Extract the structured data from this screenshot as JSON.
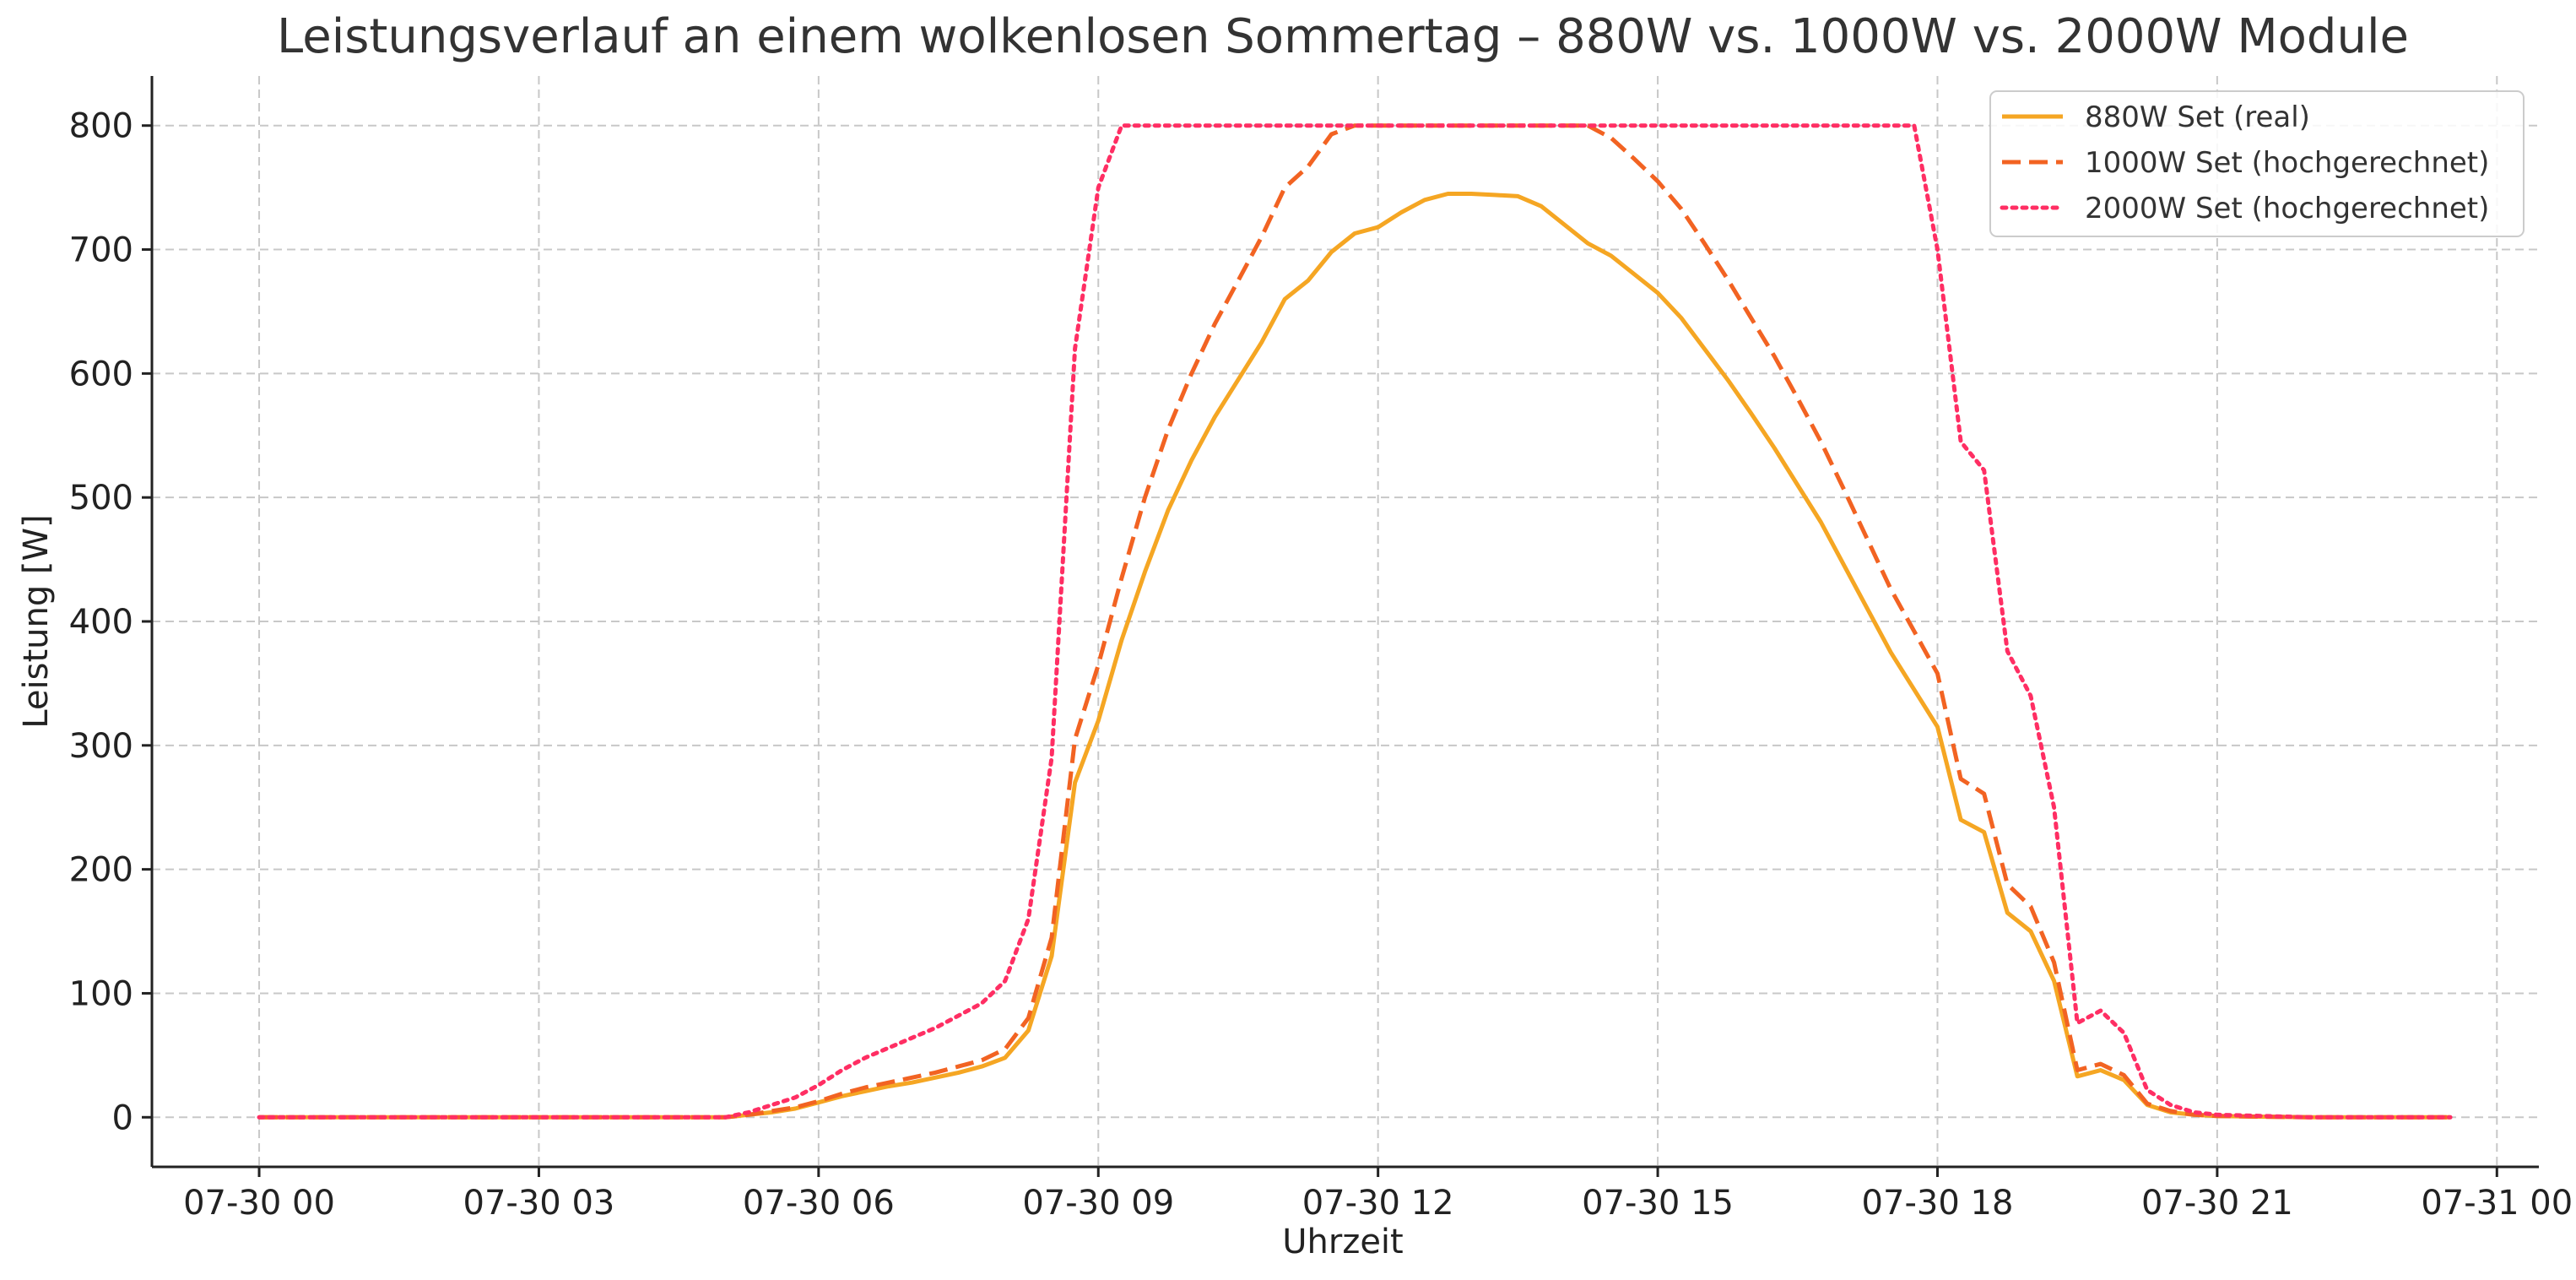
{
  "chart_data": {
    "type": "line",
    "title": "Leistungsverlauf an einem wolkenlosen Sommertag – 880W vs. 1000W vs. 2000W Module",
    "xlabel": "Uhrzeit",
    "ylabel": "Leistung [W]",
    "x_unit": "hour",
    "xlim": [
      -1.15,
      24.45
    ],
    "ylim": [
      -40,
      840
    ],
    "xticks": [
      {
        "value": 0,
        "label": "07-30 00"
      },
      {
        "value": 3,
        "label": "07-30 03"
      },
      {
        "value": 6,
        "label": "07-30 06"
      },
      {
        "value": 9,
        "label": "07-30 09"
      },
      {
        "value": 12,
        "label": "07-30 12"
      },
      {
        "value": 15,
        "label": "07-30 15"
      },
      {
        "value": 18,
        "label": "07-30 18"
      },
      {
        "value": 21,
        "label": "07-30 21"
      },
      {
        "value": 24,
        "label": "07-31 00"
      }
    ],
    "yticks": [
      {
        "value": 0,
        "label": "0"
      },
      {
        "value": 100,
        "label": "100"
      },
      {
        "value": 200,
        "label": "200"
      },
      {
        "value": 300,
        "label": "300"
      },
      {
        "value": 400,
        "label": "400"
      },
      {
        "value": 500,
        "label": "500"
      },
      {
        "value": 600,
        "label": "600"
      },
      {
        "value": 700,
        "label": "700"
      },
      {
        "value": 800,
        "label": "800"
      }
    ],
    "grid": true,
    "legend_position": "top-right",
    "series": [
      {
        "name": "880W Set (real)",
        "color": "#f5a623",
        "dash": "solid",
        "points": [
          [
            0,
            0
          ],
          [
            1,
            0
          ],
          [
            2,
            0
          ],
          [
            3,
            0
          ],
          [
            4,
            0
          ],
          [
            5,
            0
          ],
          [
            5.25,
            2
          ],
          [
            5.5,
            4
          ],
          [
            5.75,
            7
          ],
          [
            6,
            12
          ],
          [
            6.25,
            17
          ],
          [
            6.5,
            21
          ],
          [
            6.75,
            25
          ],
          [
            7,
            28
          ],
          [
            7.25,
            32
          ],
          [
            7.5,
            36
          ],
          [
            7.75,
            41
          ],
          [
            8,
            48
          ],
          [
            8.25,
            70
          ],
          [
            8.5,
            130
          ],
          [
            8.75,
            270
          ],
          [
            9,
            320
          ],
          [
            9.25,
            385
          ],
          [
            9.5,
            440
          ],
          [
            9.75,
            490
          ],
          [
            10,
            530
          ],
          [
            10.25,
            565
          ],
          [
            10.5,
            595
          ],
          [
            10.75,
            625
          ],
          [
            11,
            660
          ],
          [
            11.25,
            675
          ],
          [
            11.5,
            698
          ],
          [
            11.75,
            713
          ],
          [
            12,
            718
          ],
          [
            12.25,
            730
          ],
          [
            12.5,
            740
          ],
          [
            12.75,
            745
          ],
          [
            13,
            745
          ],
          [
            13.25,
            744
          ],
          [
            13.5,
            743
          ],
          [
            13.75,
            735
          ],
          [
            14,
            720
          ],
          [
            14.25,
            705
          ],
          [
            14.5,
            695
          ],
          [
            14.75,
            680
          ],
          [
            15,
            665
          ],
          [
            15.25,
            645
          ],
          [
            15.5,
            620
          ],
          [
            15.75,
            595
          ],
          [
            16,
            568
          ],
          [
            16.25,
            540
          ],
          [
            16.5,
            510
          ],
          [
            16.75,
            480
          ],
          [
            17,
            445
          ],
          [
            17.25,
            410
          ],
          [
            17.5,
            375
          ],
          [
            17.75,
            345
          ],
          [
            18,
            315
          ],
          [
            18.25,
            240
          ],
          [
            18.5,
            230
          ],
          [
            18.75,
            165
          ],
          [
            19,
            150
          ],
          [
            19.25,
            110
          ],
          [
            19.5,
            33
          ],
          [
            19.75,
            38
          ],
          [
            20,
            30
          ],
          [
            20.25,
            10
          ],
          [
            20.5,
            4
          ],
          [
            20.75,
            2
          ],
          [
            21,
            1
          ],
          [
            22,
            0
          ],
          [
            23,
            0
          ],
          [
            23.5,
            0
          ]
        ]
      },
      {
        "name": "1000W Set (hochgerechnet)",
        "color": "#f26322",
        "dash": "dashed",
        "points": [
          [
            0,
            0
          ],
          [
            1,
            0
          ],
          [
            2,
            0
          ],
          [
            3,
            0
          ],
          [
            4,
            0
          ],
          [
            5,
            0
          ],
          [
            5.25,
            2
          ],
          [
            5.5,
            5
          ],
          [
            5.75,
            8
          ],
          [
            6,
            13
          ],
          [
            6.25,
            19
          ],
          [
            6.5,
            24
          ],
          [
            6.75,
            28
          ],
          [
            7,
            32
          ],
          [
            7.25,
            36
          ],
          [
            7.5,
            41
          ],
          [
            7.75,
            46
          ],
          [
            8,
            55
          ],
          [
            8.25,
            80
          ],
          [
            8.5,
            145
          ],
          [
            8.75,
            305
          ],
          [
            9,
            365
          ],
          [
            9.25,
            435
          ],
          [
            9.5,
            500
          ],
          [
            9.75,
            555
          ],
          [
            10,
            600
          ],
          [
            10.25,
            640
          ],
          [
            10.5,
            675
          ],
          [
            10.75,
            710
          ],
          [
            11,
            750
          ],
          [
            11.25,
            767
          ],
          [
            11.5,
            793
          ],
          [
            11.75,
            800
          ],
          [
            12,
            800
          ],
          [
            12.5,
            800
          ],
          [
            13,
            800
          ],
          [
            13.5,
            800
          ],
          [
            14,
            800
          ],
          [
            14.25,
            800
          ],
          [
            14.5,
            790
          ],
          [
            14.75,
            773
          ],
          [
            15,
            755
          ],
          [
            15.25,
            733
          ],
          [
            15.5,
            705
          ],
          [
            15.75,
            676
          ],
          [
            16,
            645
          ],
          [
            16.25,
            614
          ],
          [
            16.5,
            580
          ],
          [
            16.75,
            545
          ],
          [
            17,
            506
          ],
          [
            17.25,
            466
          ],
          [
            17.5,
            426
          ],
          [
            17.75,
            392
          ],
          [
            18,
            358
          ],
          [
            18.25,
            273
          ],
          [
            18.5,
            261
          ],
          [
            18.75,
            188
          ],
          [
            19,
            170
          ],
          [
            19.25,
            125
          ],
          [
            19.5,
            38
          ],
          [
            19.75,
            43
          ],
          [
            20,
            34
          ],
          [
            20.25,
            11
          ],
          [
            20.5,
            5
          ],
          [
            20.75,
            2
          ],
          [
            21,
            1
          ],
          [
            22,
            0
          ],
          [
            23,
            0
          ],
          [
            23.5,
            0
          ]
        ]
      },
      {
        "name": "2000W Set (hochgerechnet)",
        "color": "#ff2e63",
        "dash": "dotted",
        "points": [
          [
            0,
            0
          ],
          [
            1,
            0
          ],
          [
            2,
            0
          ],
          [
            3,
            0
          ],
          [
            4,
            0
          ],
          [
            5,
            0
          ],
          [
            5.25,
            4
          ],
          [
            5.5,
            10
          ],
          [
            5.75,
            16
          ],
          [
            6,
            26
          ],
          [
            6.25,
            38
          ],
          [
            6.5,
            48
          ],
          [
            6.75,
            56
          ],
          [
            7,
            64
          ],
          [
            7.25,
            72
          ],
          [
            7.5,
            82
          ],
          [
            7.75,
            92
          ],
          [
            8,
            110
          ],
          [
            8.25,
            160
          ],
          [
            8.5,
            290
          ],
          [
            8.75,
            620
          ],
          [
            9,
            750
          ],
          [
            9.25,
            800
          ],
          [
            9.5,
            800
          ],
          [
            10,
            800
          ],
          [
            11,
            800
          ],
          [
            12,
            800
          ],
          [
            13,
            800
          ],
          [
            14,
            800
          ],
          [
            15,
            800
          ],
          [
            16,
            800
          ],
          [
            17,
            800
          ],
          [
            17.5,
            800
          ],
          [
            17.75,
            800
          ],
          [
            18,
            700
          ],
          [
            18.25,
            545
          ],
          [
            18.5,
            522
          ],
          [
            18.75,
            376
          ],
          [
            19,
            340
          ],
          [
            19.25,
            250
          ],
          [
            19.5,
            76
          ],
          [
            19.75,
            86
          ],
          [
            20,
            68
          ],
          [
            20.25,
            22
          ],
          [
            20.5,
            10
          ],
          [
            20.75,
            4
          ],
          [
            21,
            2
          ],
          [
            22,
            0
          ],
          [
            23,
            0
          ],
          [
            23.5,
            0
          ]
        ]
      }
    ]
  }
}
